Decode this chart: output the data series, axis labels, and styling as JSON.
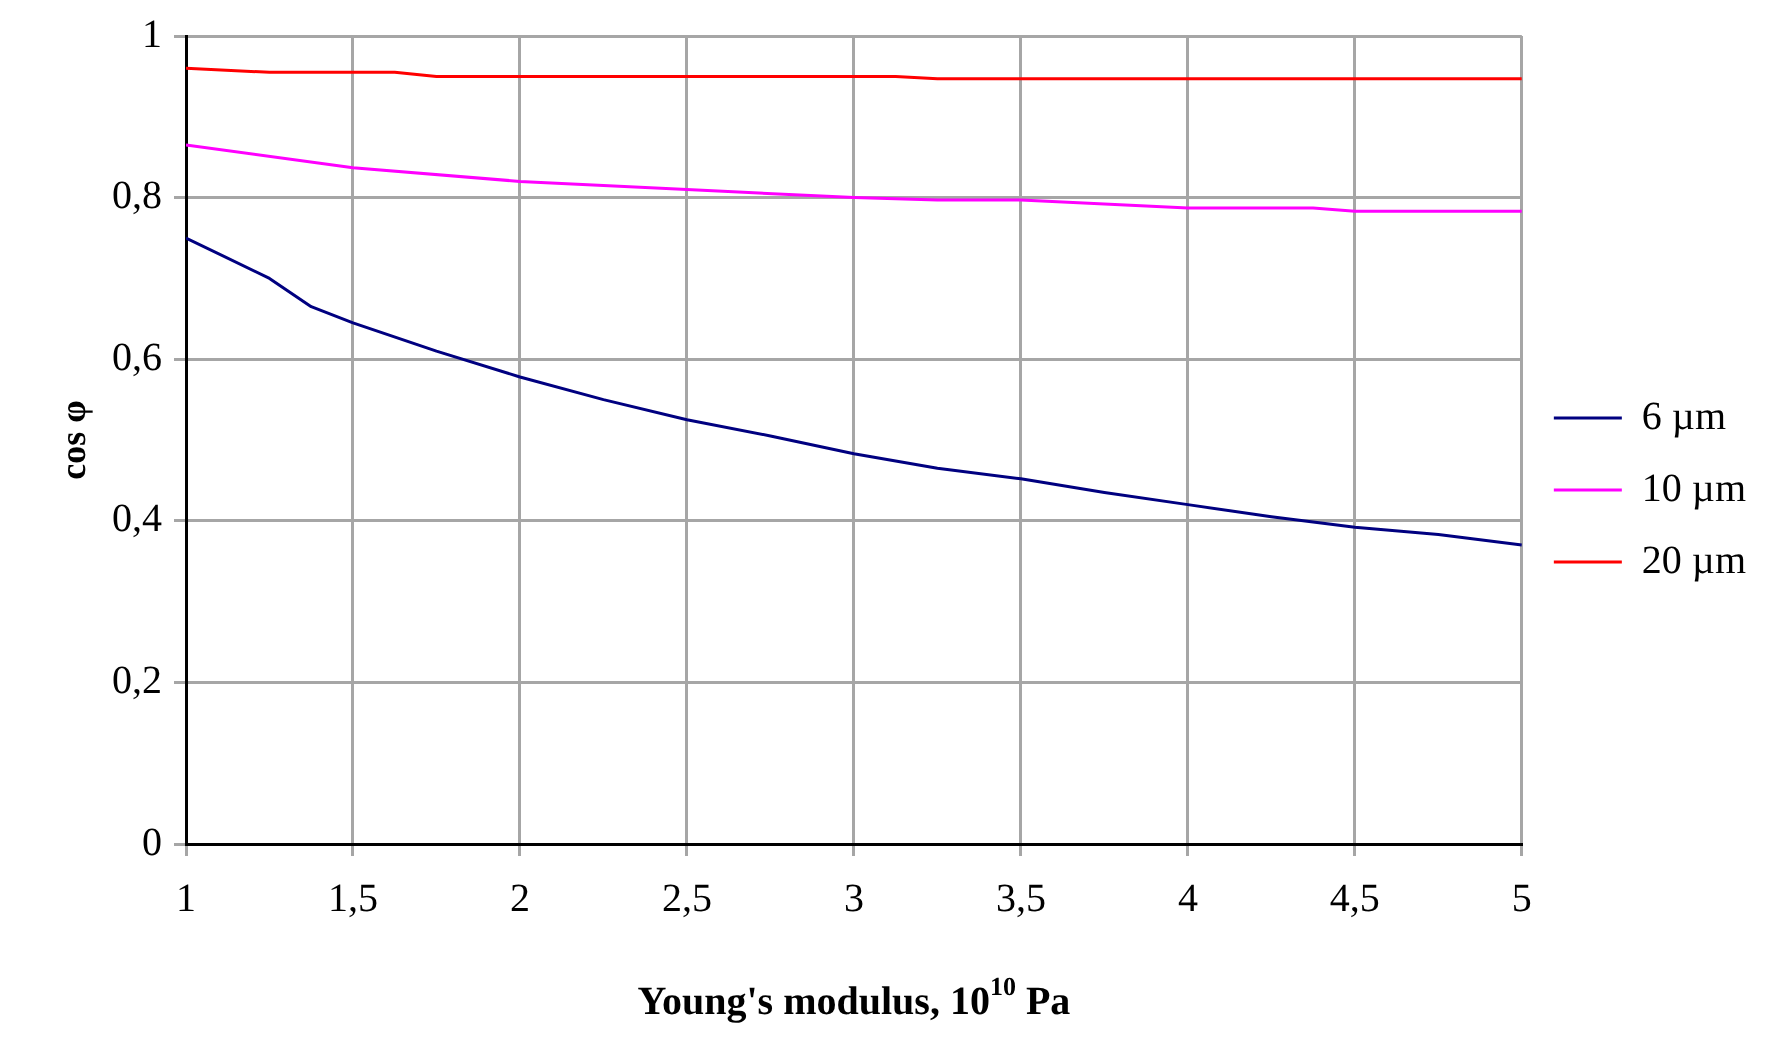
{
  "chart_data": {
    "type": "line",
    "xlabel": "Young's modulus, 10$^{10}$ Pa",
    "ylabel": "cos φ",
    "xlim": [
      1,
      5
    ],
    "xticks": [
      1,
      {
        "value": 1.5,
        "label": "1,5"
      },
      2,
      {
        "value": 2.5,
        "label": "2,5"
      },
      3,
      {
        "value": 3.5,
        "label": "3,5"
      },
      4,
      {
        "value": 4.5,
        "label": "4,5"
      },
      5
    ],
    "ylim": [
      0,
      1
    ],
    "yticks": [
      0,
      {
        "value": 0.2,
        "label": "0,2"
      },
      {
        "value": 0.4,
        "label": "0,4"
      },
      {
        "value": 0.6,
        "label": "0,6"
      },
      {
        "value": 0.8,
        "label": "0,8"
      },
      1
    ],
    "grid": true,
    "legend": "right",
    "marker": "none",
    "line_style": "solid",
    "series": [
      {
        "name": "6 µm",
        "color": "#000080",
        "x": [
          1,
          1.25,
          1.375,
          1.5,
          1.75,
          2,
          2.25,
          2.5,
          2.75,
          3,
          3.25,
          3.5,
          3.75,
          4,
          4.25,
          4.5,
          4.75,
          5
        ],
        "values": [
          0.75,
          0.7,
          0.665,
          0.645,
          0.61,
          0.578,
          0.55,
          0.525,
          0.505,
          0.483,
          0.465,
          0.452,
          0.435,
          0.42,
          0.405,
          0.392,
          0.383,
          0.37
        ]
      },
      {
        "name": "10 µm",
        "color": "#ff00ff",
        "x": [
          1,
          1.5,
          2,
          2.5,
          3,
          3.25,
          3.5,
          4,
          4.375,
          4.5,
          5
        ],
        "values": [
          0.865,
          0.837,
          0.82,
          0.81,
          0.8,
          0.797,
          0.797,
          0.787,
          0.787,
          0.783,
          0.783
        ]
      },
      {
        "name": "20 µm",
        "color": "#ff0000",
        "x": [
          1,
          1.25,
          1.625,
          1.75,
          3.125,
          3.25,
          5
        ],
        "values": [
          0.96,
          0.955,
          0.955,
          0.95,
          0.95,
          0.947,
          0.947
        ]
      }
    ]
  }
}
